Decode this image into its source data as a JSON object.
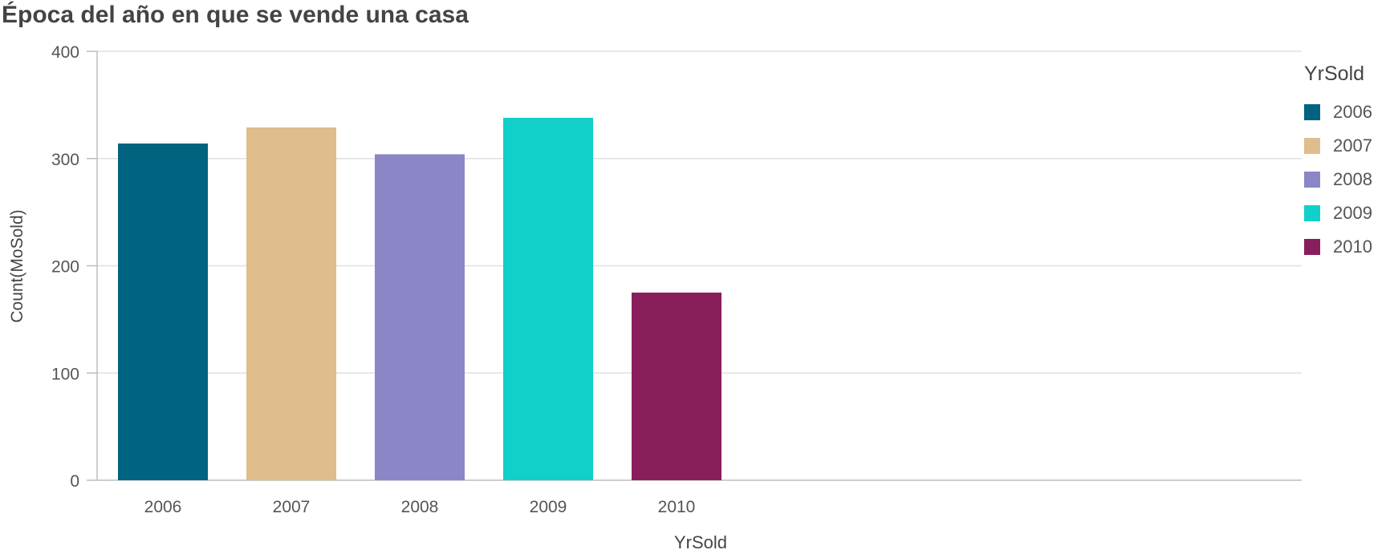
{
  "chart_data": {
    "type": "bar",
    "title": "Época del año en que se vende una casa",
    "xlabel": "YrSold",
    "ylabel": "Count(MoSold)",
    "categories": [
      "2006",
      "2007",
      "2008",
      "2009",
      "2010"
    ],
    "values": [
      314,
      329,
      304,
      338,
      175
    ],
    "colors": [
      "#00637f",
      "#dfbd8c",
      "#8b86c6",
      "#11cfc9",
      "#881f5c"
    ],
    "ylim": [
      0,
      400
    ],
    "yticks": [
      0,
      100,
      200,
      300,
      400
    ],
    "grid": true,
    "legend": {
      "title": "YrSold",
      "position": "right",
      "entries": [
        "2006",
        "2007",
        "2008",
        "2009",
        "2010"
      ]
    }
  }
}
